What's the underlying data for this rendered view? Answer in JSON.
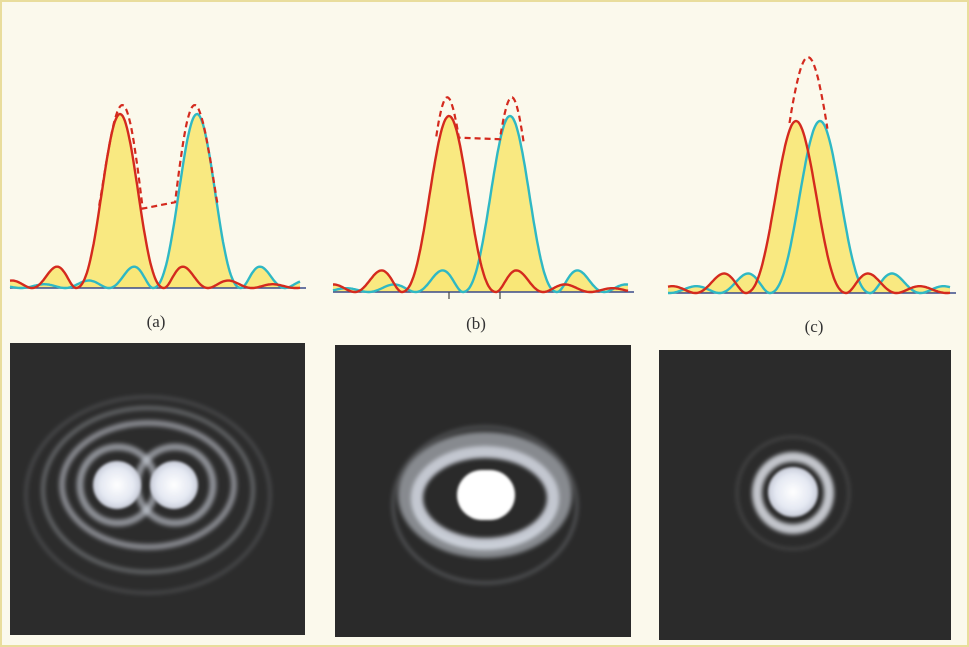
{
  "panels": [
    {
      "id": "a",
      "label": "(a)"
    },
    {
      "id": "b",
      "label": "(b)"
    },
    {
      "id": "c",
      "label": "(c)"
    }
  ],
  "colors": {
    "source_1_curve": "#d42a1e",
    "source_2_curve": "#2fb8c4",
    "combined_intensity": "#d42a1e",
    "fill": "#f8e776",
    "baseline": "#3a4a8a",
    "photo_background": "#2a2a2a",
    "fringe": "#d8dce8"
  },
  "line_styles": {
    "combined_intensity": "dashed"
  }
}
